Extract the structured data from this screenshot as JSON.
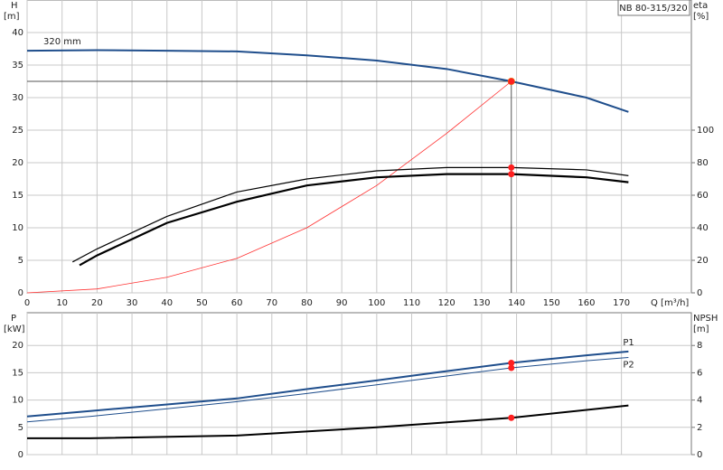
{
  "chart_data": [
    {
      "type": "line",
      "model_label": "NB 80-315/320",
      "y_label": "H",
      "y_unit": "[m]",
      "y2_label": "eta",
      "y2_unit": "[%]",
      "x_label": "Q [m³/h]",
      "xlim": [
        0,
        190
      ],
      "xticks": [
        0,
        10,
        20,
        30,
        40,
        50,
        60,
        70,
        80,
        90,
        100,
        110,
        120,
        130,
        140,
        150,
        160,
        170
      ],
      "ylim": [
        0,
        45
      ],
      "yticks": [
        0,
        5,
        10,
        15,
        20,
        25,
        30,
        35,
        40
      ],
      "y2lim": [
        0,
        180
      ],
      "y2ticks": [
        0,
        20,
        40,
        60,
        80,
        100
      ],
      "grid": true,
      "marker_color": "#ff2020",
      "duty_color": "#ffcc00",
      "duty_point": {
        "q": 138.5,
        "h": 32.5
      },
      "series": [
        {
          "name": "320 mm",
          "color": "#1f4e8c",
          "axis": "y",
          "width": 2,
          "x": [
            0,
            20,
            40,
            60,
            80,
            100,
            120,
            138.5,
            160,
            172
          ],
          "values": [
            37.2,
            37.3,
            37.2,
            37.1,
            36.5,
            35.7,
            34.4,
            32.5,
            30,
            27.8
          ]
        },
        {
          "color": "#ff3030",
          "axis": "y",
          "width": 0.8,
          "x": [
            0,
            20,
            40,
            60,
            80,
            100,
            120,
            138.5
          ],
          "values": [
            0,
            0.6,
            2.4,
            5.3,
            10,
            16.5,
            24.5,
            32.5
          ]
        },
        {
          "color": "#000000",
          "axis": "y2",
          "width": 1.2,
          "x": [
            13,
            20,
            30,
            40,
            60,
            80,
            100,
            120,
            138.5,
            160,
            172
          ],
          "values": [
            19,
            27,
            37,
            47,
            62,
            70,
            75,
            77,
            77,
            75.6,
            72
          ]
        },
        {
          "color": "#000000",
          "axis": "y2",
          "width": 2.2,
          "x": [
            15,
            20,
            30,
            40,
            60,
            80,
            100,
            120,
            138.5,
            160,
            172
          ],
          "values": [
            17,
            23,
            33,
            43,
            56,
            66,
            71,
            73,
            73,
            71,
            68
          ]
        }
      ]
    },
    {
      "type": "line",
      "y_label": "P",
      "y_unit": "[kW]",
      "y2_label": "NPSH",
      "y2_unit": "[m]",
      "xlim": [
        0,
        190
      ],
      "xticks": [
        0,
        10,
        20,
        30,
        40,
        50,
        60,
        70,
        80,
        90,
        100,
        110,
        120,
        130,
        140,
        150,
        160,
        170
      ],
      "ylim": [
        0,
        26
      ],
      "yticks": [
        0,
        5,
        10,
        15,
        20
      ],
      "y2lim": [
        0,
        10.4
      ],
      "y2ticks": [
        0,
        2,
        4,
        6,
        8
      ],
      "grid": true,
      "marker_color": "#ff2020",
      "marker_x": 138.5,
      "series": [
        {
          "name": "P1",
          "color": "#1f4e8c",
          "axis": "y",
          "width": 2,
          "x": [
            0,
            18,
            40,
            60,
            80,
            100,
            120,
            138.5,
            160,
            172
          ],
          "values": [
            7,
            8,
            9.2,
            10.3,
            12,
            13.6,
            15.3,
            16.8,
            18.2,
            18.9
          ]
        },
        {
          "name": "P2",
          "color": "#1f4e8c",
          "axis": "y",
          "width": 1,
          "x": [
            0,
            18,
            40,
            60,
            80,
            100,
            120,
            138.5,
            160,
            172
          ],
          "values": [
            6,
            7,
            8.4,
            9.7,
            11.2,
            12.8,
            14.4,
            15.9,
            17.2,
            17.8
          ]
        },
        {
          "color": "#000000",
          "axis": "y2",
          "width": 2,
          "x": [
            0,
            18,
            60,
            100,
            138.5,
            172
          ],
          "values": [
            1.2,
            1.2,
            1.4,
            2,
            2.7,
            3.6
          ]
        }
      ]
    }
  ]
}
